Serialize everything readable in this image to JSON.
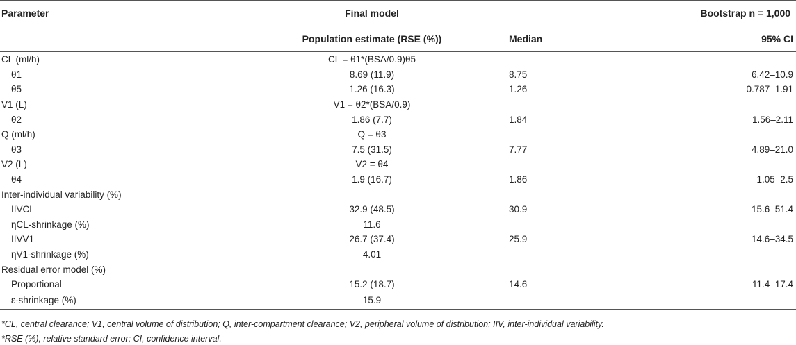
{
  "headers": {
    "parameter": "Parameter",
    "final_model": "Final model",
    "bootstrap": "Bootstrap n = 1,000",
    "pop_estimate": "Population estimate (RSE (%))",
    "median": "Median",
    "ci": "95% CI"
  },
  "rows": [
    {
      "param": "CL (ml/h)",
      "sub": false,
      "estimate": "CL = θ1*(BSA/0.9)θ5",
      "median": "",
      "ci": ""
    },
    {
      "param": "θ1",
      "sub": true,
      "estimate": "8.69 (11.9)",
      "median": "8.75",
      "ci": "6.42–10.9"
    },
    {
      "param": "θ5",
      "sub": true,
      "estimate": "1.26 (16.3)",
      "median": "1.26",
      "ci": "0.787–1.91"
    },
    {
      "param": "V1 (L)",
      "sub": false,
      "estimate": "V1 = θ2*(BSA/0.9)",
      "median": "",
      "ci": ""
    },
    {
      "param": "θ2",
      "sub": true,
      "estimate": "1.86 (7.7)",
      "median": "1.84",
      "ci": "1.56–2.11"
    },
    {
      "param": "Q (ml/h)",
      "sub": false,
      "estimate": "Q = θ3",
      "median": "",
      "ci": ""
    },
    {
      "param": "θ3",
      "sub": true,
      "estimate": "7.5 (31.5)",
      "median": "7.77",
      "ci": "4.89–21.0"
    },
    {
      "param": "V2 (L)",
      "sub": false,
      "estimate": "V2 = θ4",
      "median": "",
      "ci": ""
    },
    {
      "param": "θ4",
      "sub": true,
      "estimate": "1.9 (16.7)",
      "median": "1.86",
      "ci": "1.05–2.5"
    },
    {
      "param": "Inter-individual variability (%)",
      "sub": false,
      "estimate": "",
      "median": "",
      "ci": ""
    },
    {
      "param": "IIVCL",
      "sub": true,
      "estimate": "32.9 (48.5)",
      "median": "30.9",
      "ci": "15.6–51.4"
    },
    {
      "param": "ηCL-shrinkage (%)",
      "sub": true,
      "estimate": "11.6",
      "median": "",
      "ci": ""
    },
    {
      "param": "IIVV1",
      "sub": true,
      "estimate": "26.7 (37.4)",
      "median": "25.9",
      "ci": "14.6–34.5"
    },
    {
      "param": "ηV1-shrinkage (%)",
      "sub": true,
      "estimate": "4.01",
      "median": "",
      "ci": ""
    },
    {
      "param": "Residual error model (%)",
      "sub": false,
      "estimate": "",
      "median": "",
      "ci": ""
    },
    {
      "param": "Proportional",
      "sub": true,
      "estimate": "15.2 (18.7)",
      "median": "14.6",
      "ci": "11.4–17.4"
    },
    {
      "param": "ε-shrinkage (%)",
      "sub": true,
      "estimate": "15.9",
      "median": "",
      "ci": ""
    }
  ],
  "footnotes": [
    "*CL, central clearance; V1, central volume of distribution; Q, inter-compartment clearance; V2, peripheral volume of distribution; IIV, inter-individual variability.",
    "*RSE (%), relative standard error; CI, confidence interval."
  ]
}
